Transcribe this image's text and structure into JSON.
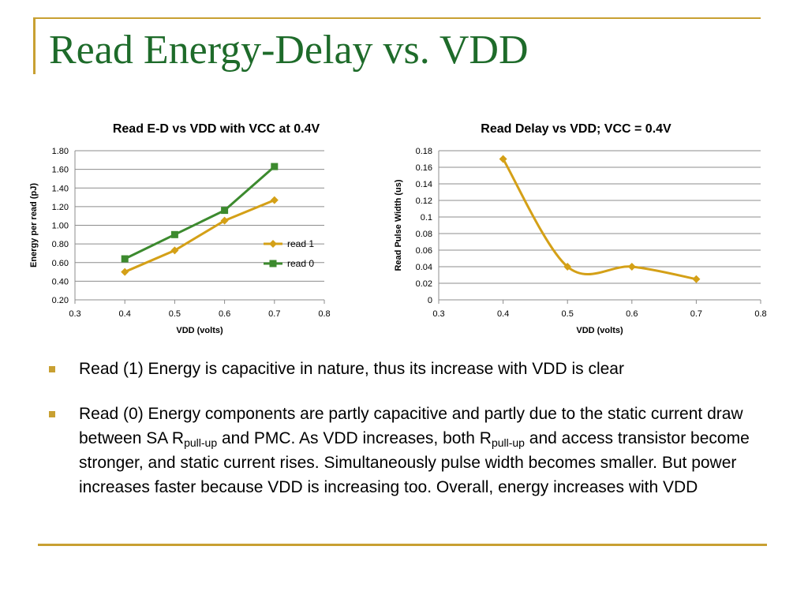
{
  "slide": {
    "title": "Read Energy-Delay vs. VDD",
    "accent_color": "#C8A032",
    "title_color": "#1E6B2A"
  },
  "chart_data": [
    {
      "type": "line",
      "title": "Read E-D vs VDD with VCC at 0.4V",
      "xlabel": "VDD (volts)",
      "ylabel": "Energy per read (pJ)",
      "xlim": [
        0.3,
        0.8
      ],
      "ylim": [
        0.2,
        1.8
      ],
      "xticks": [
        0.3,
        0.4,
        0.5,
        0.6,
        0.7,
        0.8
      ],
      "xtick_labels": [
        "0.3",
        "0.4",
        "0.5",
        "0.6",
        "0.7",
        "0.8"
      ],
      "yticks": [
        0.2,
        0.4,
        0.6,
        0.8,
        1.0,
        1.2,
        1.4,
        1.6,
        1.8
      ],
      "ytick_labels": [
        "0.20",
        "0.40",
        "0.60",
        "0.80",
        "1.00",
        "1.20",
        "1.40",
        "1.60",
        "1.80"
      ],
      "grid": "horizontal",
      "legend": "right",
      "series": [
        {
          "name": "read 1",
          "color": "#D4A017",
          "marker": "diamond",
          "x": [
            0.4,
            0.5,
            0.6,
            0.7
          ],
          "y": [
            0.5,
            0.73,
            1.05,
            1.27
          ]
        },
        {
          "name": "read 0",
          "color": "#3C8A2E",
          "marker": "square",
          "x": [
            0.4,
            0.5,
            0.6,
            0.7
          ],
          "y": [
            0.64,
            0.9,
            1.16,
            1.63
          ]
        }
      ]
    },
    {
      "type": "line",
      "title": "Read Delay vs VDD; VCC = 0.4V",
      "xlabel": "VDD (volts)",
      "ylabel": "Read Pulse Width (us)",
      "xlim": [
        0.3,
        0.8
      ],
      "ylim": [
        0,
        0.18
      ],
      "xticks": [
        0.3,
        0.4,
        0.5,
        0.6,
        0.7,
        0.8
      ],
      "xtick_labels": [
        "0.3",
        "0.4",
        "0.5",
        "0.6",
        "0.7",
        "0.8"
      ],
      "yticks": [
        0,
        0.02,
        0.04,
        0.06,
        0.08,
        0.1,
        0.12,
        0.14,
        0.16,
        0.18
      ],
      "ytick_labels": [
        "0",
        "0.02",
        "0.04",
        "0.06",
        "0.08",
        "0.1",
        "0.12",
        "0.14",
        "0.16",
        "0.18"
      ],
      "grid": "horizontal",
      "legend": "none",
      "series": [
        {
          "color": "#D4A017",
          "marker": "diamond",
          "smooth": true,
          "x": [
            0.4,
            0.5,
            0.6,
            0.7
          ],
          "y": [
            0.17,
            0.04,
            0.04,
            0.025
          ]
        }
      ]
    }
  ],
  "bullets": [
    {
      "text": "Read (1) Energy is capacitive in nature, thus its increase with VDD is clear"
    },
    {
      "part1": "Read (0) Energy components are partly capacitive and partly due to the static current draw between SA R",
      "sub1": "pull-up",
      "part2": " and PMC. As VDD increases, both R",
      "sub2": "pull-up",
      "part3": " and access transistor become stronger, and static current rises. Simultaneously pulse width becomes smaller. But power increases faster because VDD is increasing too. Overall, energy increases with VDD"
    }
  ]
}
